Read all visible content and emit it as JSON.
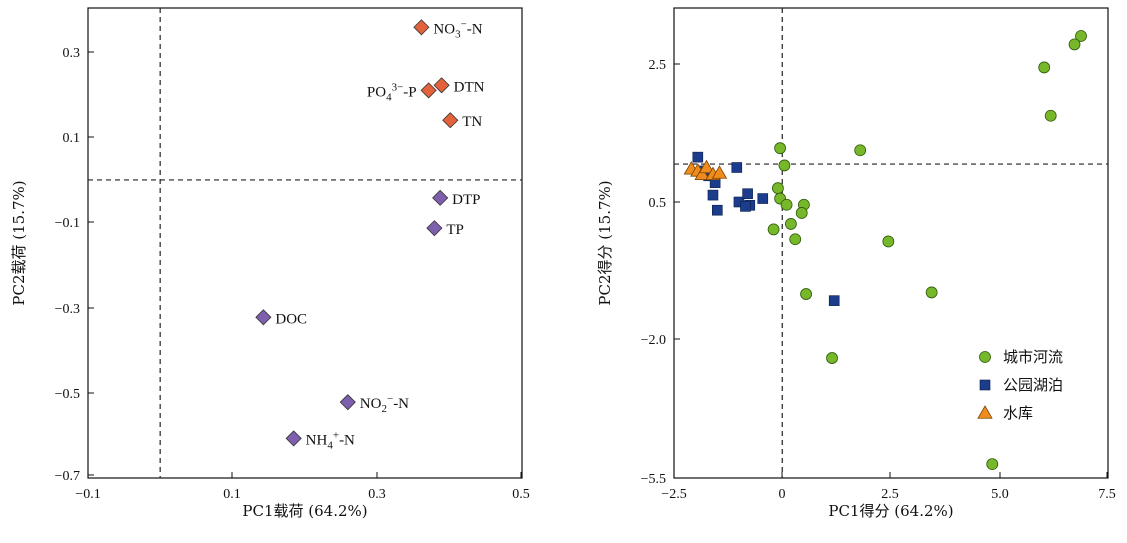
{
  "chart_data": [
    {
      "type": "scatter",
      "title": "",
      "xlabel": "PC1载荷 (64.2%)",
      "ylabel": "PC2载荷 (15.7%)",
      "xlim": [
        -0.1,
        0.5
      ],
      "ylim": [
        -0.7,
        0.4
      ],
      "xticks": [
        "−0.1",
        "0.1",
        "0.3",
        "0.5"
      ],
      "yticks": [
        "0.3",
        "0.1",
        "−0.1",
        "−0.3",
        "−0.5",
        "−0.7"
      ],
      "reference_lines": {
        "x": 0,
        "y": 0
      },
      "colors": {
        "nitrogen_group": "#e2623b",
        "other_group": "#7e5fad"
      },
      "points": [
        {
          "label": "NO3−-N",
          "sub": "3",
          "sup": "−",
          "pre": "NO",
          "post": "-N",
          "x": 0.362,
          "y": 0.358,
          "group": "nitrogen_group",
          "label_side": "right"
        },
        {
          "label": "DTN",
          "x": 0.39,
          "y": 0.222,
          "group": "nitrogen_group",
          "label_side": "right"
        },
        {
          "label": "PO43−-P",
          "sub": "4",
          "sup": "3−",
          "pre": "PO",
          "post": "-P",
          "x": 0.372,
          "y": 0.21,
          "group": "nitrogen_group",
          "label_side": "left"
        },
        {
          "label": "TN",
          "x": 0.402,
          "y": 0.14,
          "group": "nitrogen_group",
          "label_side": "right"
        },
        {
          "label": "DTP",
          "x": 0.388,
          "y": -0.042,
          "group": "other_group",
          "label_side": "right"
        },
        {
          "label": "TP",
          "x": 0.38,
          "y": -0.113,
          "group": "other_group",
          "label_side": "right"
        },
        {
          "label": "DOC",
          "x": 0.143,
          "y": -0.322,
          "group": "other_group",
          "label_side": "right"
        },
        {
          "label": "NO2−-N",
          "sub": "2",
          "sup": "−",
          "pre": "NO",
          "post": "-N",
          "x": 0.26,
          "y": -0.521,
          "group": "other_group",
          "label_side": "right"
        },
        {
          "label": "NH4+-N",
          "sub": "4",
          "sup": "+",
          "pre": "NH",
          "post": "-N",
          "x": 0.185,
          "y": -0.606,
          "group": "other_group",
          "label_side": "right"
        }
      ]
    },
    {
      "type": "scatter",
      "title": "",
      "xlabel": "PC1得分 (64.2%)",
      "ylabel": "PC2得分 (15.7%)",
      "xlim": [
        -2.5,
        7.5
      ],
      "ylim": [
        -5.5,
        3.5
      ],
      "xticks": [
        "−2.5",
        "0",
        "2.5",
        "5.0",
        "7.5"
      ],
      "yticks": [
        "2.5",
        "0.5",
        "−2.0",
        "−5.5"
      ],
      "reference_lines": {
        "x": 0,
        "y": 1.05
      },
      "legend": {
        "position": "bottom-right",
        "entries": [
          "城市河流",
          "公园湖泊",
          "水库"
        ]
      },
      "series": [
        {
          "name": "城市河流",
          "marker": "circle",
          "color": "#76b82a",
          "points": [
            [
              6.9,
              3.0
            ],
            [
              6.75,
              2.85
            ],
            [
              6.05,
              2.45
            ],
            [
              6.2,
              1.75
            ],
            [
              1.8,
              1.25
            ],
            [
              -0.05,
              1.28
            ],
            [
              0.05,
              1.03
            ],
            [
              -0.1,
              0.7
            ],
            [
              -0.05,
              0.55
            ],
            [
              0.1,
              0.45
            ],
            [
              0.5,
              0.45
            ],
            [
              0.45,
              0.3
            ],
            [
              0.2,
              0.1
            ],
            [
              -0.2,
              0.0
            ],
            [
              0.3,
              -0.18
            ],
            [
              2.45,
              -0.22
            ],
            [
              0.55,
              -1.18
            ],
            [
              3.45,
              -1.15
            ],
            [
              1.15,
              -2.48
            ],
            [
              4.85,
              -5.15
            ]
          ]
        },
        {
          "name": "公园湖泊",
          "marker": "square",
          "color": "#1c3c8c",
          "points": [
            [
              -1.95,
              1.15
            ],
            [
              -1.85,
              0.95
            ],
            [
              -1.7,
              0.88
            ],
            [
              -1.55,
              0.78
            ],
            [
              -1.6,
              0.6
            ],
            [
              -1.5,
              0.35
            ],
            [
              -1.05,
              1.0
            ],
            [
              -1.0,
              0.5
            ],
            [
              -0.8,
              0.62
            ],
            [
              -0.75,
              0.44
            ],
            [
              -0.85,
              0.42
            ],
            [
              -0.45,
              0.55
            ],
            [
              1.2,
              -1.3
            ]
          ]
        },
        {
          "name": "水库",
          "marker": "triangle",
          "color": "#f08c1e",
          "points": [
            [
              -2.1,
              0.98
            ],
            [
              -1.95,
              0.95
            ],
            [
              -1.85,
              0.9
            ],
            [
              -1.75,
              1.0
            ],
            [
              -1.6,
              0.9
            ],
            [
              -1.45,
              0.92
            ]
          ]
        }
      ]
    }
  ]
}
